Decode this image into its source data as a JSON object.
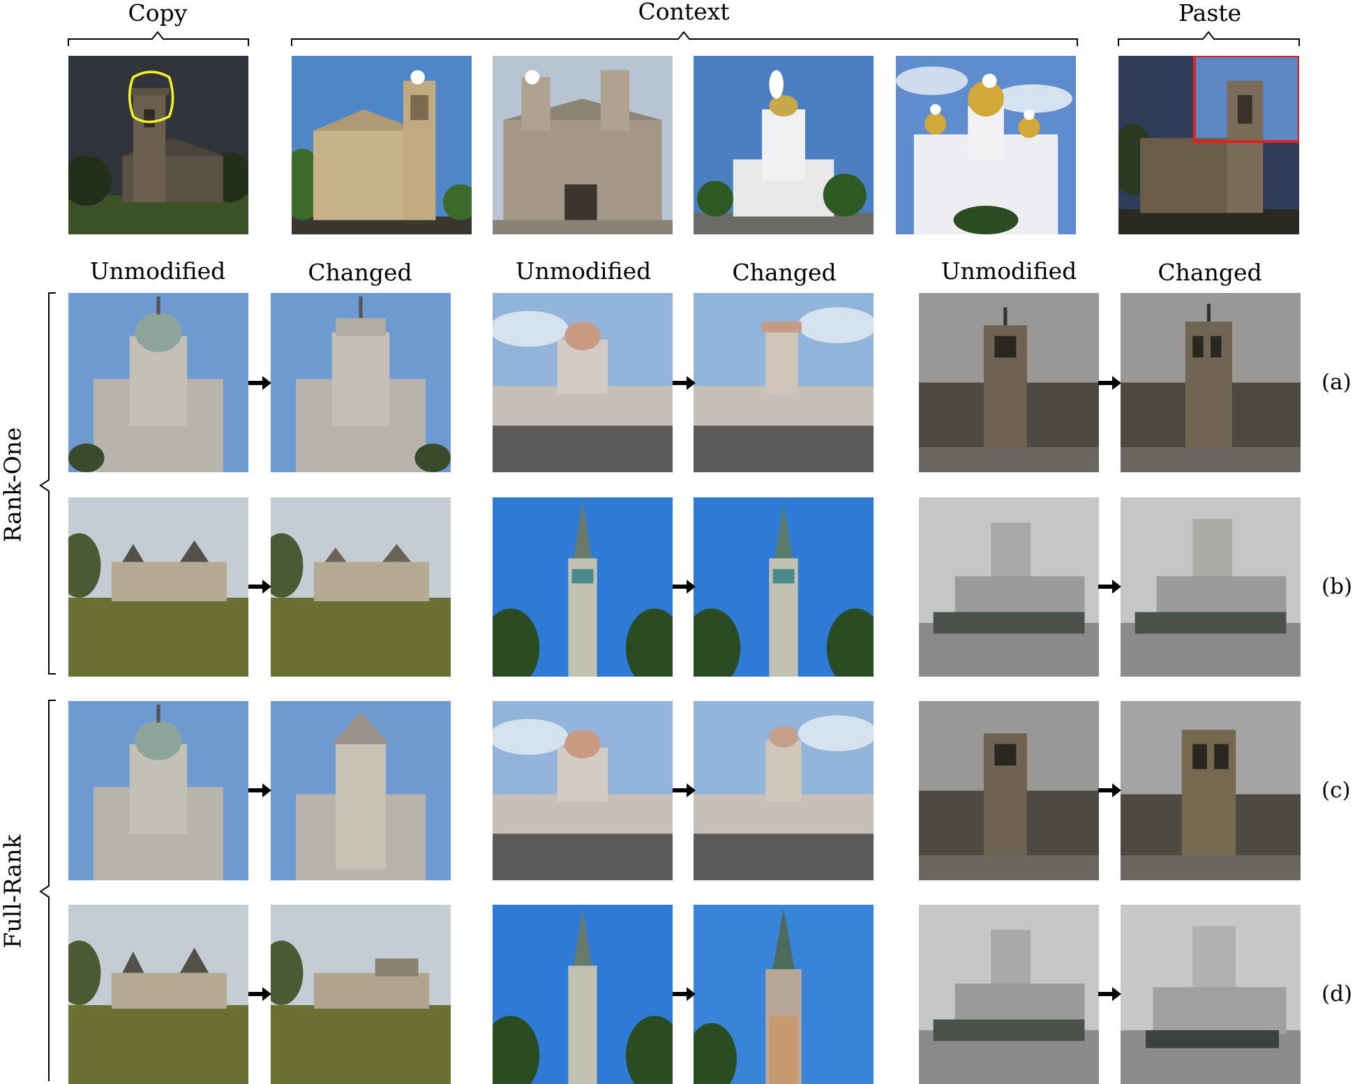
{
  "header": {
    "copy": "Copy",
    "context": "Context",
    "paste": "Paste"
  },
  "column_headers": [
    "Unmodified",
    "Changed",
    "Unmodified",
    "Changed",
    "Unmodified",
    "Changed"
  ],
  "groups": {
    "rank_one": "Rank-One",
    "full_rank": "Full-Rank"
  },
  "row_labels": [
    "(a)",
    "(b)",
    "(c)",
    "(d)"
  ],
  "colors": {
    "copy_highlight": "#f2ee2a",
    "paste_box": "#e02020",
    "arrow": "#000000"
  },
  "images": {
    "copy": "church-with-selected-tower",
    "context": [
      "gothic-cathedral-tower",
      "baroque-church-facade",
      "white-domed-cathedral",
      "golden-domed-orthodox-cathedral"
    ],
    "paste": "church-with-pasted-tower"
  }
}
